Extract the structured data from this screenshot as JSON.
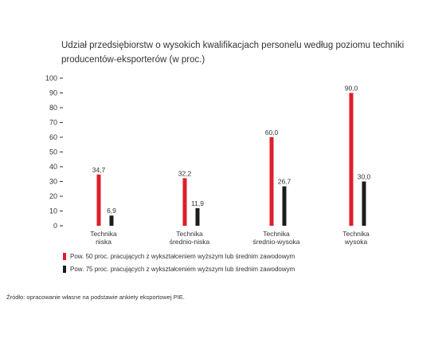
{
  "chart_data": {
    "type": "bar",
    "title_lines": [
      "Udział przedsiębiorstw o wysokich kwalifikacjach personelu według poziomu techniki",
      "producentów-eksporterów (w proc.)"
    ],
    "categories": [
      [
        "Technika",
        "niska"
      ],
      [
        "Technika",
        "średnio-niska"
      ],
      [
        "Technika",
        "średnio-wysoka"
      ],
      [
        "Technika",
        "wysoka"
      ]
    ],
    "series": [
      {
        "name": "Pow. 50 proc. pracujących z wykształceniem wyższym lub średnim zawodowym",
        "color": "#e01e2b",
        "values": [
          34.7,
          32.2,
          60.0,
          90.0
        ],
        "labels": [
          "34,7",
          "32,2",
          "60,0",
          "90,0"
        ]
      },
      {
        "name": "Pow. 75 proc. pracujących z wykształceniem wyższym lub średnim zawodowym",
        "color": "#1c1c1c",
        "values": [
          6.9,
          11.9,
          26.7,
          30.0
        ],
        "labels": [
          "6,9",
          "11,9",
          "26,7",
          "30,0"
        ]
      }
    ],
    "ylim": [
      0,
      100
    ],
    "yticks": [
      0,
      10,
      20,
      30,
      40,
      50,
      60,
      70,
      80,
      90,
      100
    ],
    "grid": false,
    "legend_position": "bottom-left",
    "source": "Źródło: opracowanie własne na podstawie ankiety eksportowej PIE."
  }
}
